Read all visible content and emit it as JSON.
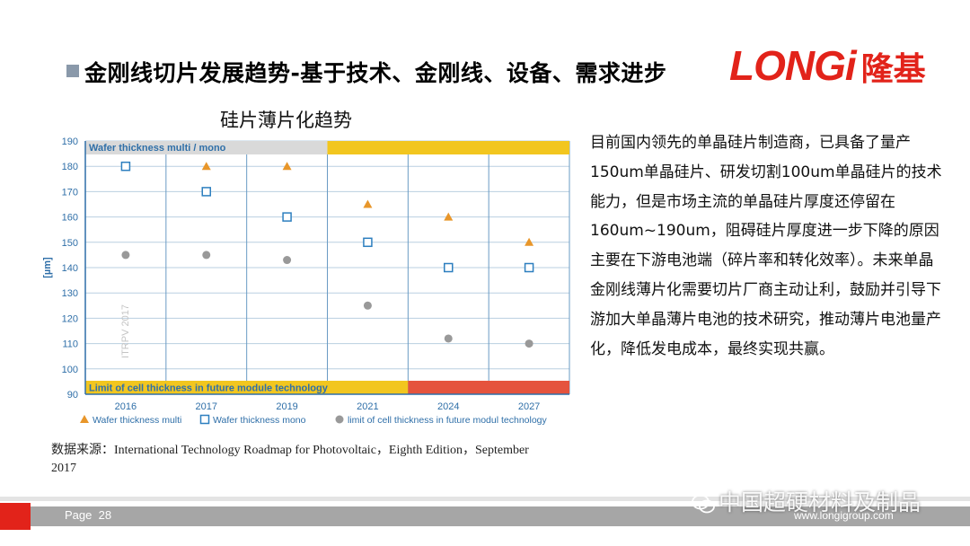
{
  "slide": {
    "title": "金刚线切片发展趋势-基于技术、金刚线、设备、需求进步",
    "logo_latin": "LONGi",
    "logo_cjk": "隆基",
    "source_note": "数据来源：International Technology Roadmap for Photovoltaic，Eighth Edition，September 2017",
    "side_text": "目前国内领先的单晶硅片制造商，已具备了量产150um单晶硅片、研发切割100um单晶硅片的技术能力，但是市场主流的单晶硅片厚度还停留在160um~190um，阻碍硅片厚度进一步下降的原因主要在下游电池端（碎片率和转化效率）。未来单晶金刚线薄片化需要切片厂商主动让利，鼓励并引导下游加大单晶薄片电池的技术研究，推动薄片电池量产化，降低发电成本，最终实现共赢。",
    "page_label": "Page",
    "page_number": "28",
    "website": "www.longigroup.com",
    "watermark": "中国超硬材料及制品",
    "colors": {
      "brand_red": "#e2231a",
      "banner_grey": "#d9d9d9",
      "banner_yellow": "#f2c61f",
      "banner_red": "#e5533d",
      "axis_blue": "#2f6fa8"
    }
  },
  "chart_data": {
    "type": "scatter",
    "title": "硅片薄片化趋势",
    "ylabel": "[µm]",
    "xlabel": "",
    "ylim": [
      90,
      190
    ],
    "yticks": [
      90,
      100,
      110,
      120,
      130,
      140,
      150,
      160,
      170,
      180,
      190
    ],
    "categories": [
      "2016",
      "2017",
      "2019",
      "2021",
      "2024",
      "2027"
    ],
    "top_banner": "Wafer thickness multi / mono",
    "bottom_banner": "Limit of cell thickness in future module technology",
    "watermark_label": "ITRPV 2017",
    "grid": true,
    "legend_position": "bottom",
    "series": [
      {
        "name": "Wafer thickness multi",
        "marker": "triangle",
        "color": "#e8962a",
        "values": [
          180,
          180,
          180,
          165,
          160,
          150
        ]
      },
      {
        "name": "Wafer thickness mono",
        "marker": "square",
        "color": "#2d7fbf",
        "values": [
          180,
          170,
          160,
          150,
          140,
          140
        ]
      },
      {
        "name": "limit of cell thickness in future modul technology",
        "marker": "circle",
        "color": "#999999",
        "values": [
          145,
          145,
          143,
          125,
          112,
          110
        ]
      }
    ]
  }
}
